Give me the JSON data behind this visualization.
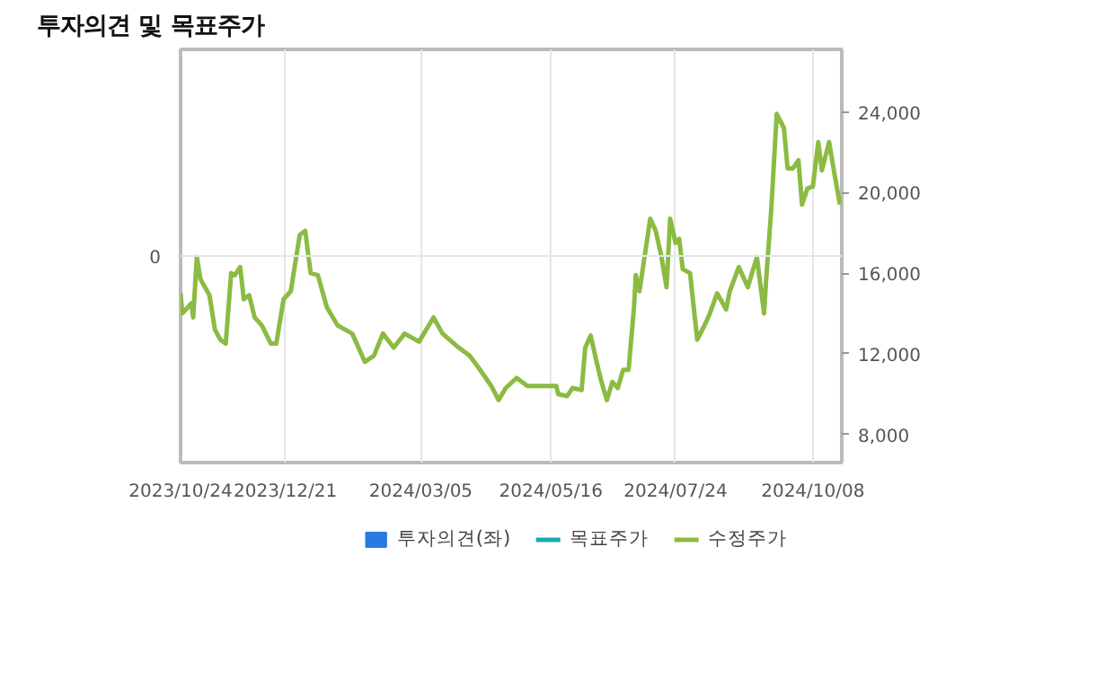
{
  "chart_data": {
    "type": "line",
    "title": "투자의견 및 목표주가",
    "xlim": [
      "2023-10-24",
      "2024-10-24"
    ],
    "xticks": [
      {
        "value": "2023-10-24",
        "label": "2023/10/24"
      },
      {
        "value": "2023-12-21",
        "label": "2023/12/21"
      },
      {
        "value": "2024-03-05",
        "label": "2024/03/05"
      },
      {
        "value": "2024-05-16",
        "label": "2024/05/16"
      },
      {
        "value": "2024-07-24",
        "label": "2024/07/24"
      },
      {
        "value": "2024-10-08",
        "label": "2024/10/08"
      }
    ],
    "annotations": [
      "0"
    ],
    "y2lim": [
      6600,
      27100
    ],
    "y2ticks": [
      {
        "value": 8000,
        "label": "8,000"
      },
      {
        "value": 12000,
        "label": "12,000"
      },
      {
        "value": 16000,
        "label": "16,000"
      },
      {
        "value": 20000,
        "label": "20,000"
      },
      {
        "value": 24000,
        "label": "24,000"
      }
    ],
    "grid": "x",
    "legend": "bottom",
    "series": [
      {
        "name": "투자의견(좌)",
        "type": "bar",
        "color": "#2a7ae2"
      },
      {
        "name": "목표주가",
        "axis": "y2",
        "color": "#1aa9b5"
      },
      {
        "name": "수정주가",
        "axis": "y2",
        "color": "#8bbb43",
        "x": [
          "2023-10-24",
          "2023-10-25",
          "2023-10-30",
          "2023-10-31",
          "2023-11-02",
          "2023-11-04",
          "2023-11-09",
          "2023-11-12",
          "2023-11-15",
          "2023-11-18",
          "2023-11-21",
          "2023-11-23",
          "2023-11-26",
          "2023-11-28",
          "2023-12-01",
          "2023-12-04",
          "2023-12-08",
          "2023-12-13",
          "2023-12-16",
          "2023-12-20",
          "2023-12-24",
          "2023-12-29",
          "2024-01-01",
          "2024-01-04",
          "2024-01-08",
          "2024-01-13",
          "2024-01-19",
          "2024-01-27",
          "2024-02-03",
          "2024-02-08",
          "2024-02-13",
          "2024-02-19",
          "2024-02-25",
          "2024-03-04",
          "2024-03-12",
          "2024-03-17",
          "2024-03-26",
          "2024-04-01",
          "2024-04-06",
          "2024-04-13",
          "2024-04-17",
          "2024-04-21",
          "2024-04-27",
          "2024-05-03",
          "2024-05-19",
          "2024-05-20",
          "2024-05-25",
          "2024-05-28",
          "2024-06-02",
          "2024-06-04",
          "2024-06-07",
          "2024-06-10",
          "2024-06-13",
          "2024-06-16",
          "2024-06-19",
          "2024-06-22",
          "2024-06-25",
          "2024-06-28",
          "2024-07-01",
          "2024-07-02",
          "2024-07-04",
          "2024-07-06",
          "2024-07-10",
          "2024-07-13",
          "2024-07-16",
          "2024-07-19",
          "2024-07-21",
          "2024-07-24",
          "2024-07-26",
          "2024-07-28",
          "2024-08-01",
          "2024-08-05",
          "2024-08-09",
          "2024-08-12",
          "2024-08-16",
          "2024-08-21",
          "2024-08-23",
          "2024-08-28",
          "2024-09-02",
          "2024-09-07",
          "2024-09-11",
          "2024-09-12",
          "2024-09-15",
          "2024-09-18",
          "2024-09-22",
          "2024-09-24",
          "2024-09-27",
          "2024-09-30",
          "2024-10-02",
          "2024-10-05",
          "2024-10-08",
          "2024-10-11",
          "2024-10-13",
          "2024-10-17",
          "2024-10-20",
          "2024-10-23"
        ],
        "values": [
          15000,
          14000,
          14500,
          13800,
          16800,
          15700,
          14900,
          13200,
          12700,
          12500,
          16000,
          15900,
          16300,
          14700,
          14900,
          13800,
          13400,
          12500,
          12500,
          14700,
          15100,
          17900,
          18100,
          16000,
          15900,
          14300,
          13400,
          13000,
          11600,
          11900,
          13000,
          12300,
          13000,
          12600,
          13800,
          13000,
          12300,
          11900,
          11300,
          10400,
          9700,
          10300,
          10800,
          10400,
          10400,
          10000,
          9900,
          10300,
          10200,
          12300,
          12900,
          11700,
          10600,
          9700,
          10600,
          10300,
          11200,
          11200,
          14300,
          15900,
          15100,
          16300,
          18700,
          18100,
          16900,
          15300,
          18700,
          17500,
          17700,
          16200,
          16000,
          12700,
          13400,
          14000,
          15000,
          14200,
          15100,
          16300,
          15300,
          16800,
          14000,
          15500,
          19200,
          23900,
          23200,
          21200,
          21200,
          21600,
          19400,
          20200,
          20300,
          22500,
          21100,
          22500,
          20900,
          19400
        ]
      }
    ]
  }
}
